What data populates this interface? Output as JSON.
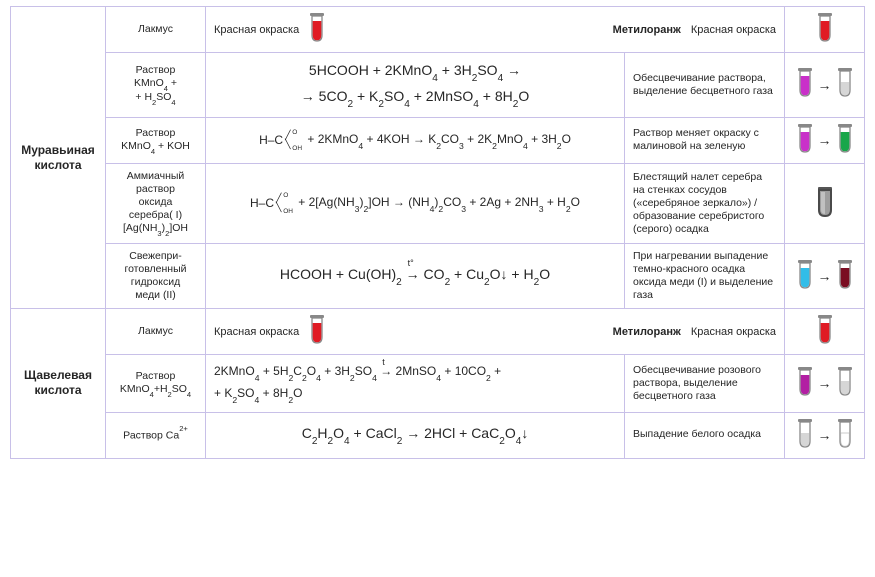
{
  "colors": {
    "red": "#e01b24",
    "magenta": "#c930c9",
    "grey": "#d6d6d6",
    "green": "#19a64a",
    "silver_body": "#9e9e9e",
    "silver_edge": "#4a4a4a",
    "cyan": "#32bde8",
    "darkred": "#7a0d22",
    "white": "#ffffff",
    "darkmagenta": "#b21fa3"
  },
  "acid1": {
    "title": "Муравьиная кислота",
    "indicator": {
      "lakmus_label": "Лакмус",
      "lakmus_val": "Красная окраска",
      "methyl_label": "Метилоранж",
      "methyl_val": "Красная окраска"
    },
    "rows": [
      {
        "reagent": "Раствор KMnO₄ + + H₂SO₄",
        "reaction_l1": "5HCOOH + 2KMnO₄ + 3H₂SO₄ →",
        "reaction_l2": "→ 5CO₂ + K₂SO₄ + 2MnSO₄ + 8H₂O",
        "observe": "Обесцвечивание раствора, выделение бесцветного газа",
        "tube_from": "magenta",
        "tube_to": "grey"
      },
      {
        "reagent": "Раствор KMnO₄ + KOH",
        "reaction": "H–C⟨O,OH⟩ + 2KMnO₄ + 4KOH → K₂CO₃ + 2K₂MnO₄ + 3H₂O",
        "observe": "Раствор меняет окраску с малиновой на зеленую",
        "tube_from": "magenta",
        "tube_to": "green"
      },
      {
        "reagent": "Аммиачный раствор оксида серебра( I) [Ag(NH₃)₂]OH",
        "reaction": "H–C⟨O,OH⟩ + 2[Ag(NH₃)₂]OH → (NH₄)₂CO₃ + 2Ag + 2NH₃ + H₂O",
        "observe": "Блестящий налет серебра на стенках сосудов («серебряное зеркало») / образование серебристого (серого) осадка"
      },
      {
        "reagent": "Свежеприготовленный гидроксид меди (II)",
        "reaction": "HCOOH + Cu(OH)₂ →ᵗ° CO₂ + Cu₂O↓ + H₂O",
        "observe": "При нагревании выпадение темно-красного осадка оксида меди (I) и выделение газа",
        "tube_from": "cyan",
        "tube_to": "darkred"
      }
    ]
  },
  "acid2": {
    "title": "Щавелевая кислота",
    "indicator": {
      "lakmus_label": "Лакмус",
      "lakmus_val": "Красная окраска",
      "methyl_label": "Метилоранж",
      "methyl_val": "Красная окраска"
    },
    "rows": [
      {
        "reagent": "Раствор KMnO₄+H₂SO₄",
        "reaction_l1": "2KMnO₄ + 5H₂C₂O₄ + 3H₂SO₄ →ᵗ 2MnSO₄ + 10CO₂ +",
        "reaction_l2": "+ K₂SO₄ + 8H₂O",
        "observe": "Обесцвечивание розового раствора, выделение бесцветного газа",
        "tube_from": "darkmagenta",
        "tube_to": "grey"
      },
      {
        "reagent": "Раствор Ca²⁺",
        "reaction": "C₂H₂O₄ + CaCl₂ → 2HCl + CaC₂O₄↓",
        "observe": "Выпадение белого осадка",
        "tube_from": "grey",
        "tube_to": "white"
      }
    ]
  }
}
